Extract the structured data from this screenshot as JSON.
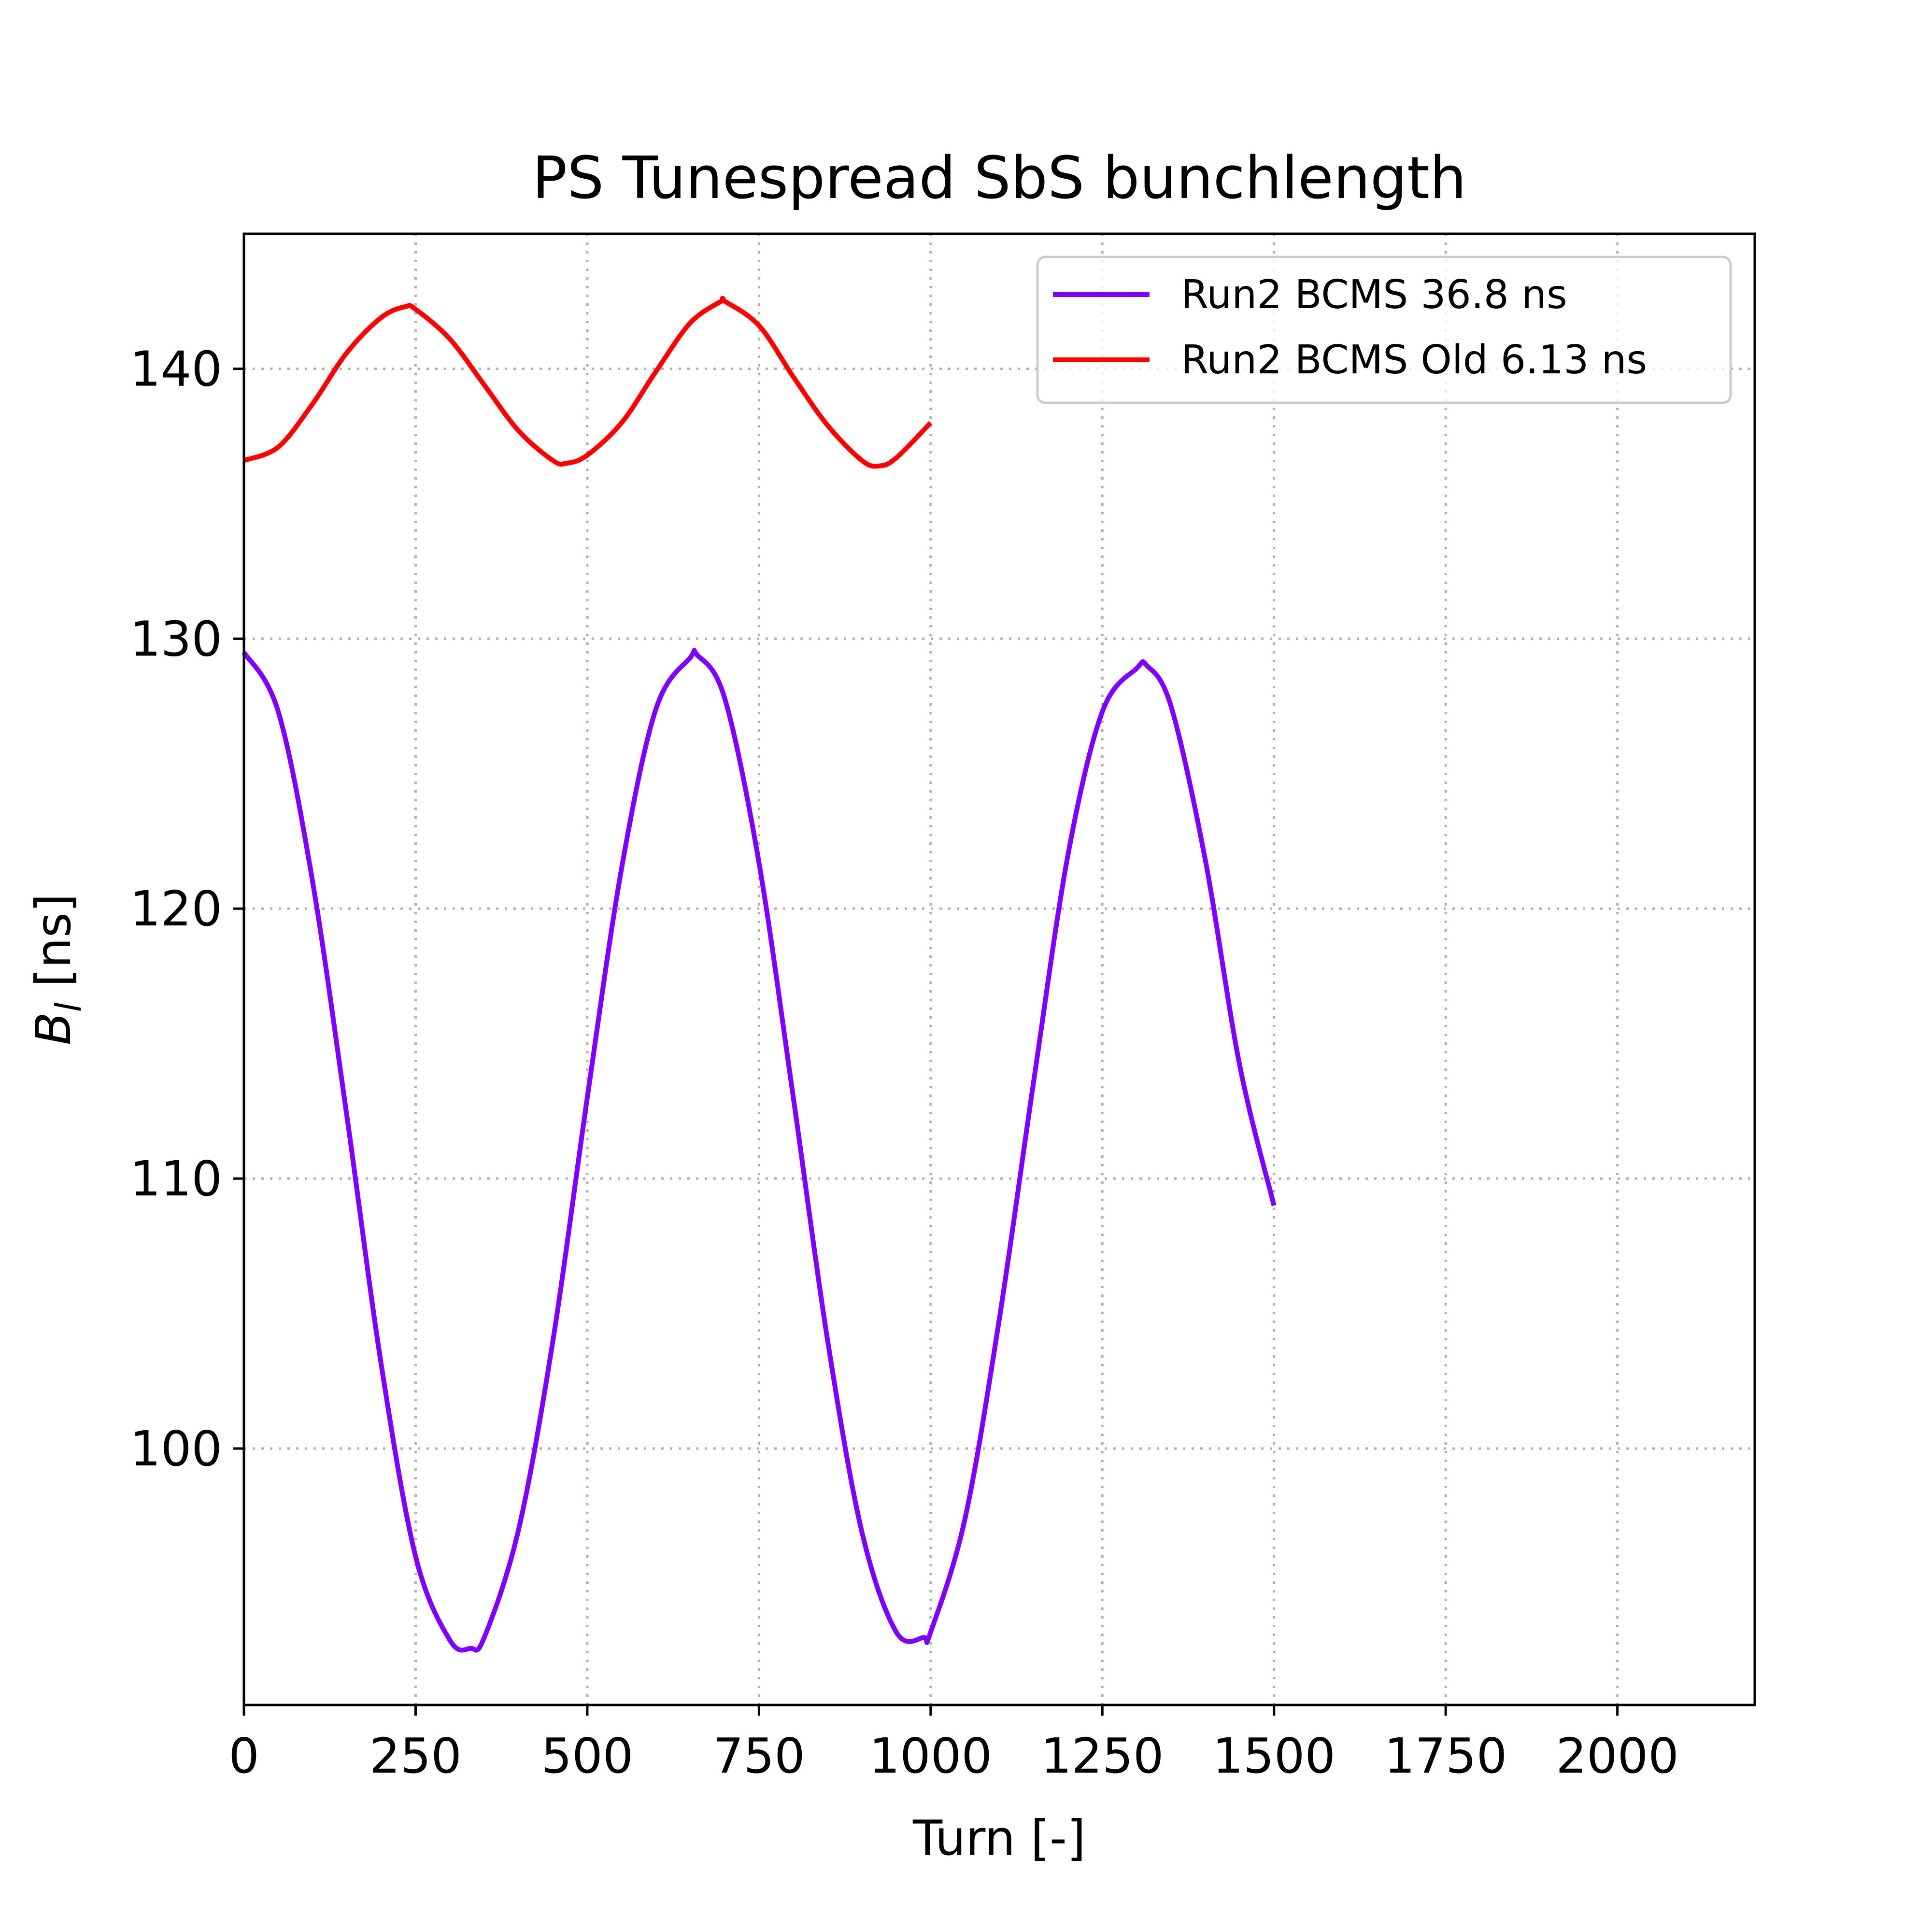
{
  "chart_data": {
    "type": "line",
    "title": "PS Tunespread SbS bunchlength",
    "xlabel": "Turn [-]",
    "ylabel_main": "B",
    "ylabel_sub": "l",
    "ylabel_unit": " [ns]",
    "xlim": [
      0,
      2200
    ],
    "ylim": [
      90.5,
      145
    ],
    "xticks": [
      0,
      250,
      500,
      750,
      1000,
      1250,
      1500,
      1750,
      2000
    ],
    "yticks": [
      100,
      110,
      120,
      130,
      140
    ],
    "grid": true,
    "grid_style": "dotted",
    "legend_position": "top-right",
    "series": [
      {
        "name": "Run2 BCMS 36.8 ns",
        "color": "#7f00ff",
        "x": [
          0,
          50,
          100,
          150,
          200,
          250,
          300,
          330,
          350,
          400,
          450,
          500,
          550,
          600,
          650,
          660,
          700,
          750,
          800,
          850,
          900,
          950,
          990,
          1000,
          1050,
          1100,
          1150,
          1200,
          1250,
          1300,
          1315,
          1350,
          1400,
          1450,
          1500
        ],
        "y": [
          129.5,
          127.3,
          121.0,
          112.3,
          103.1,
          96.0,
          92.9,
          92.6,
          93.0,
          97.0,
          104.0,
          113.0,
          121.5,
          127.4,
          129.3,
          129.4,
          127.8,
          121.7,
          113.0,
          104.0,
          96.9,
          93.2,
          93.0,
          93.2,
          97.4,
          104.8,
          113.6,
          122.0,
          127.3,
          128.9,
          129.0,
          127.5,
          121.8,
          114.2,
          109.0
        ]
      },
      {
        "name": "Run2 BCMS Old 6.13 ns",
        "color": "#ff0000",
        "x": [
          0,
          50,
          100,
          150,
          200,
          235,
          250,
          300,
          350,
          400,
          450,
          470,
          500,
          550,
          600,
          650,
          695,
          700,
          750,
          800,
          850,
          900,
          925,
          950,
          1000
        ],
        "y": [
          136.6,
          137.1,
          138.7,
          140.6,
          141.9,
          142.3,
          142.2,
          141.1,
          139.4,
          137.7,
          136.6,
          136.5,
          136.8,
          138.0,
          139.9,
          141.7,
          142.5,
          142.5,
          141.6,
          139.7,
          137.9,
          136.6,
          136.4,
          136.7,
          138.0
        ]
      }
    ]
  }
}
